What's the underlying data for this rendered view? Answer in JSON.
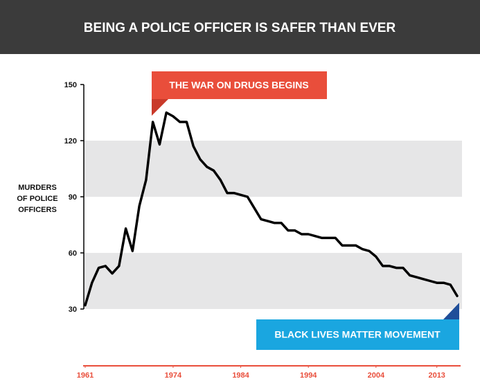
{
  "chart_data": {
    "type": "line",
    "title": "BEING A POLICE OFFICER IS SAFER THAN EVER",
    "y_label": [
      "MURDERS",
      "OF POLICE",
      "OFFICERS"
    ],
    "x": [
      1961,
      1962,
      1963,
      1964,
      1965,
      1966,
      1967,
      1968,
      1969,
      1970,
      1971,
      1972,
      1973,
      1974,
      1975,
      1976,
      1977,
      1978,
      1979,
      1980,
      1981,
      1982,
      1983,
      1984,
      1985,
      1986,
      1987,
      1988,
      1989,
      1990,
      1991,
      1992,
      1993,
      1994,
      1995,
      1996,
      1997,
      1998,
      1999,
      2000,
      2001,
      2002,
      2003,
      2004,
      2005,
      2006,
      2007,
      2008,
      2009,
      2010,
      2011,
      2012,
      2013,
      2014,
      2015,
      2016
    ],
    "series": [
      {
        "name": "Murders of police officers",
        "color": "#000000",
        "values": [
          32,
          44,
          52,
          53,
          49,
          53,
          73,
          61,
          85,
          99,
          130,
          118,
          135,
          133,
          130,
          130,
          117,
          110,
          106,
          104,
          99,
          92,
          92,
          91,
          90,
          84,
          78,
          77,
          76,
          76,
          72,
          72,
          70,
          70,
          69,
          68,
          68,
          68,
          64,
          64,
          64,
          62,
          61,
          58,
          53,
          53,
          52,
          52,
          48,
          47,
          46,
          45,
          44,
          44,
          43,
          37
        ]
      }
    ],
    "xlim": [
      1961,
      2016
    ],
    "xticks": [
      1961,
      1974,
      1984,
      1994,
      2004,
      2013
    ],
    "ylim": [
      30,
      150
    ],
    "yticks": [
      30,
      60,
      90,
      120,
      150
    ],
    "grid": "bands",
    "annotations": [
      {
        "text": "THE WAR ON DRUGS BEGINS",
        "color": "#e94e3b",
        "shade": "#c93a2a"
      },
      {
        "text": "BLACK LIVES MATTER MOVEMENT",
        "color": "#1aa6e0",
        "shade": "#1f4e99"
      }
    ]
  }
}
